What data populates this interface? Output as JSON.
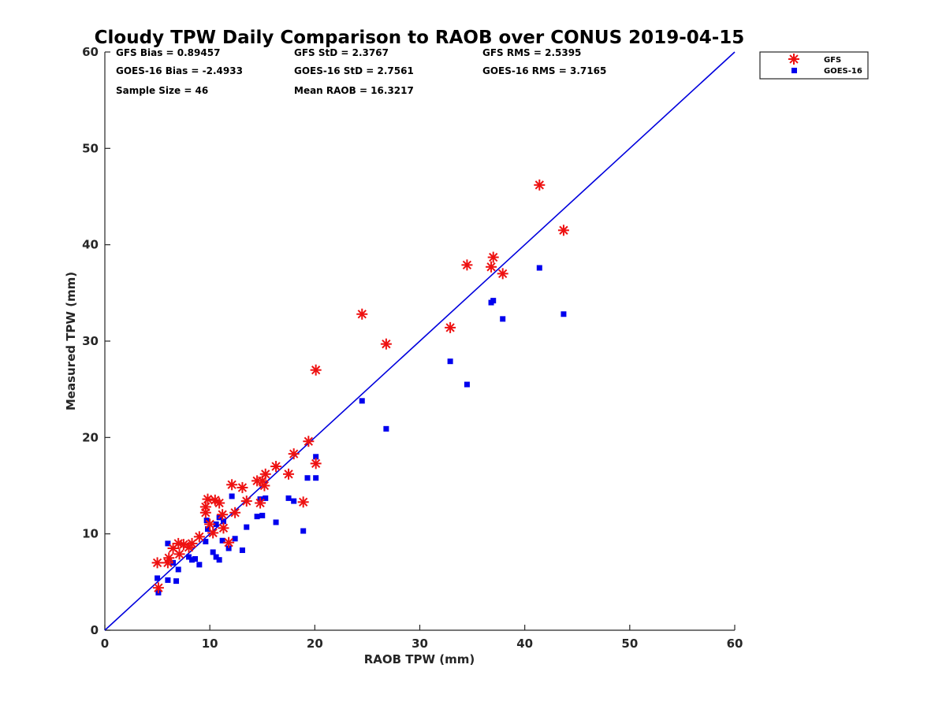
{
  "chart_data": {
    "type": "scatter",
    "title": "Cloudy TPW Daily Comparison to RAOB over CONUS 2019-04-15",
    "xlabel": "RAOB TPW (mm)",
    "ylabel": "Measured TPW (mm)",
    "xlim": [
      0,
      60
    ],
    "ylim": [
      0,
      60
    ],
    "xticks": [
      "0",
      "10",
      "20",
      "30",
      "40",
      "50",
      "60"
    ],
    "yticks": [
      "0",
      "10",
      "20",
      "30",
      "40",
      "50",
      "60"
    ],
    "grid": false,
    "legend_position": "top-right",
    "reference_line": {
      "style": "1:1",
      "color": "#0000dd"
    },
    "stats": {
      "gfs_bias": "GFS Bias = 0.89457",
      "gfs_std": "GFS StD = 2.3767",
      "gfs_rms": "GFS RMS = 2.5395",
      "goes_bias": "GOES-16 Bias = -2.4933",
      "goes_std": "GOES-16 StD = 2.7561",
      "goes_rms": "GOES-16 RMS = 3.7165",
      "sample_size": "Sample Size = 46",
      "mean_raob": "Mean RAOB = 16.3217"
    },
    "series": [
      {
        "name": "GFS",
        "marker": "asterisk",
        "color": "#ee1111",
        "points": [
          [
            5.0,
            7.0
          ],
          [
            5.1,
            4.4
          ],
          [
            6.0,
            7.0
          ],
          [
            6.1,
            7.5
          ],
          [
            6.5,
            8.5
          ],
          [
            7.0,
            9.0
          ],
          [
            7.1,
            7.9
          ],
          [
            8.0,
            8.6
          ],
          [
            8.3,
            9.0
          ],
          [
            9.0,
            9.7
          ],
          [
            9.6,
            12.2
          ],
          [
            9.6,
            12.8
          ],
          [
            9.8,
            13.6
          ],
          [
            10.3,
            10.1
          ],
          [
            10.5,
            13.5
          ],
          [
            10.9,
            13.2
          ],
          [
            11.2,
            12.0
          ],
          [
            11.3,
            10.6
          ],
          [
            11.8,
            9.1
          ],
          [
            12.1,
            15.1
          ],
          [
            12.4,
            12.2
          ],
          [
            13.1,
            14.8
          ],
          [
            13.5,
            13.4
          ],
          [
            14.5,
            15.5
          ],
          [
            14.8,
            13.2
          ],
          [
            15.0,
            15.5
          ],
          [
            15.3,
            16.2
          ],
          [
            16.3,
            17.0
          ],
          [
            17.5,
            16.2
          ],
          [
            18.0,
            18.3
          ],
          [
            18.9,
            13.3
          ],
          [
            19.4,
            19.6
          ],
          [
            20.1,
            17.3
          ],
          [
            20.1,
            27.0
          ],
          [
            24.5,
            32.8
          ],
          [
            26.8,
            29.7
          ],
          [
            32.9,
            31.4
          ],
          [
            34.5,
            37.9
          ],
          [
            36.8,
            37.7
          ],
          [
            37.0,
            38.7
          ],
          [
            37.9,
            37.0
          ],
          [
            41.4,
            46.2
          ],
          [
            43.7,
            41.5
          ],
          [
            7.5,
            8.9
          ],
          [
            10.0,
            11.0
          ],
          [
            15.2,
            15.0
          ]
        ]
      },
      {
        "name": "GOES-16",
        "marker": "square",
        "color": "#0000ee",
        "points": [
          [
            5.0,
            5.4
          ],
          [
            5.1,
            3.9
          ],
          [
            6.0,
            9.0
          ],
          [
            6.0,
            5.2
          ],
          [
            6.5,
            7.0
          ],
          [
            6.8,
            5.1
          ],
          [
            7.0,
            6.3
          ],
          [
            8.0,
            7.6
          ],
          [
            8.3,
            7.3
          ],
          [
            8.6,
            7.4
          ],
          [
            9.0,
            6.8
          ],
          [
            9.6,
            9.2
          ],
          [
            9.7,
            11.4
          ],
          [
            9.8,
            10.5
          ],
          [
            10.3,
            8.1
          ],
          [
            10.6,
            7.6
          ],
          [
            10.6,
            11.0
          ],
          [
            10.9,
            11.7
          ],
          [
            10.9,
            7.3
          ],
          [
            11.2,
            9.3
          ],
          [
            11.3,
            11.3
          ],
          [
            11.8,
            8.5
          ],
          [
            12.1,
            13.9
          ],
          [
            12.4,
            9.5
          ],
          [
            13.1,
            8.3
          ],
          [
            13.5,
            10.7
          ],
          [
            14.5,
            11.8
          ],
          [
            14.8,
            13.6
          ],
          [
            15.0,
            11.9
          ],
          [
            15.3,
            13.7
          ],
          [
            16.3,
            11.2
          ],
          [
            17.5,
            13.7
          ],
          [
            18.0,
            13.4
          ],
          [
            18.9,
            10.3
          ],
          [
            19.3,
            15.8
          ],
          [
            20.1,
            18.0
          ],
          [
            20.1,
            15.8
          ],
          [
            24.5,
            23.8
          ],
          [
            26.8,
            20.9
          ],
          [
            32.9,
            27.9
          ],
          [
            34.5,
            25.5
          ],
          [
            36.8,
            34.0
          ],
          [
            37.0,
            34.2
          ],
          [
            37.9,
            32.3
          ],
          [
            41.4,
            37.6
          ],
          [
            43.7,
            32.8
          ]
        ]
      }
    ]
  }
}
